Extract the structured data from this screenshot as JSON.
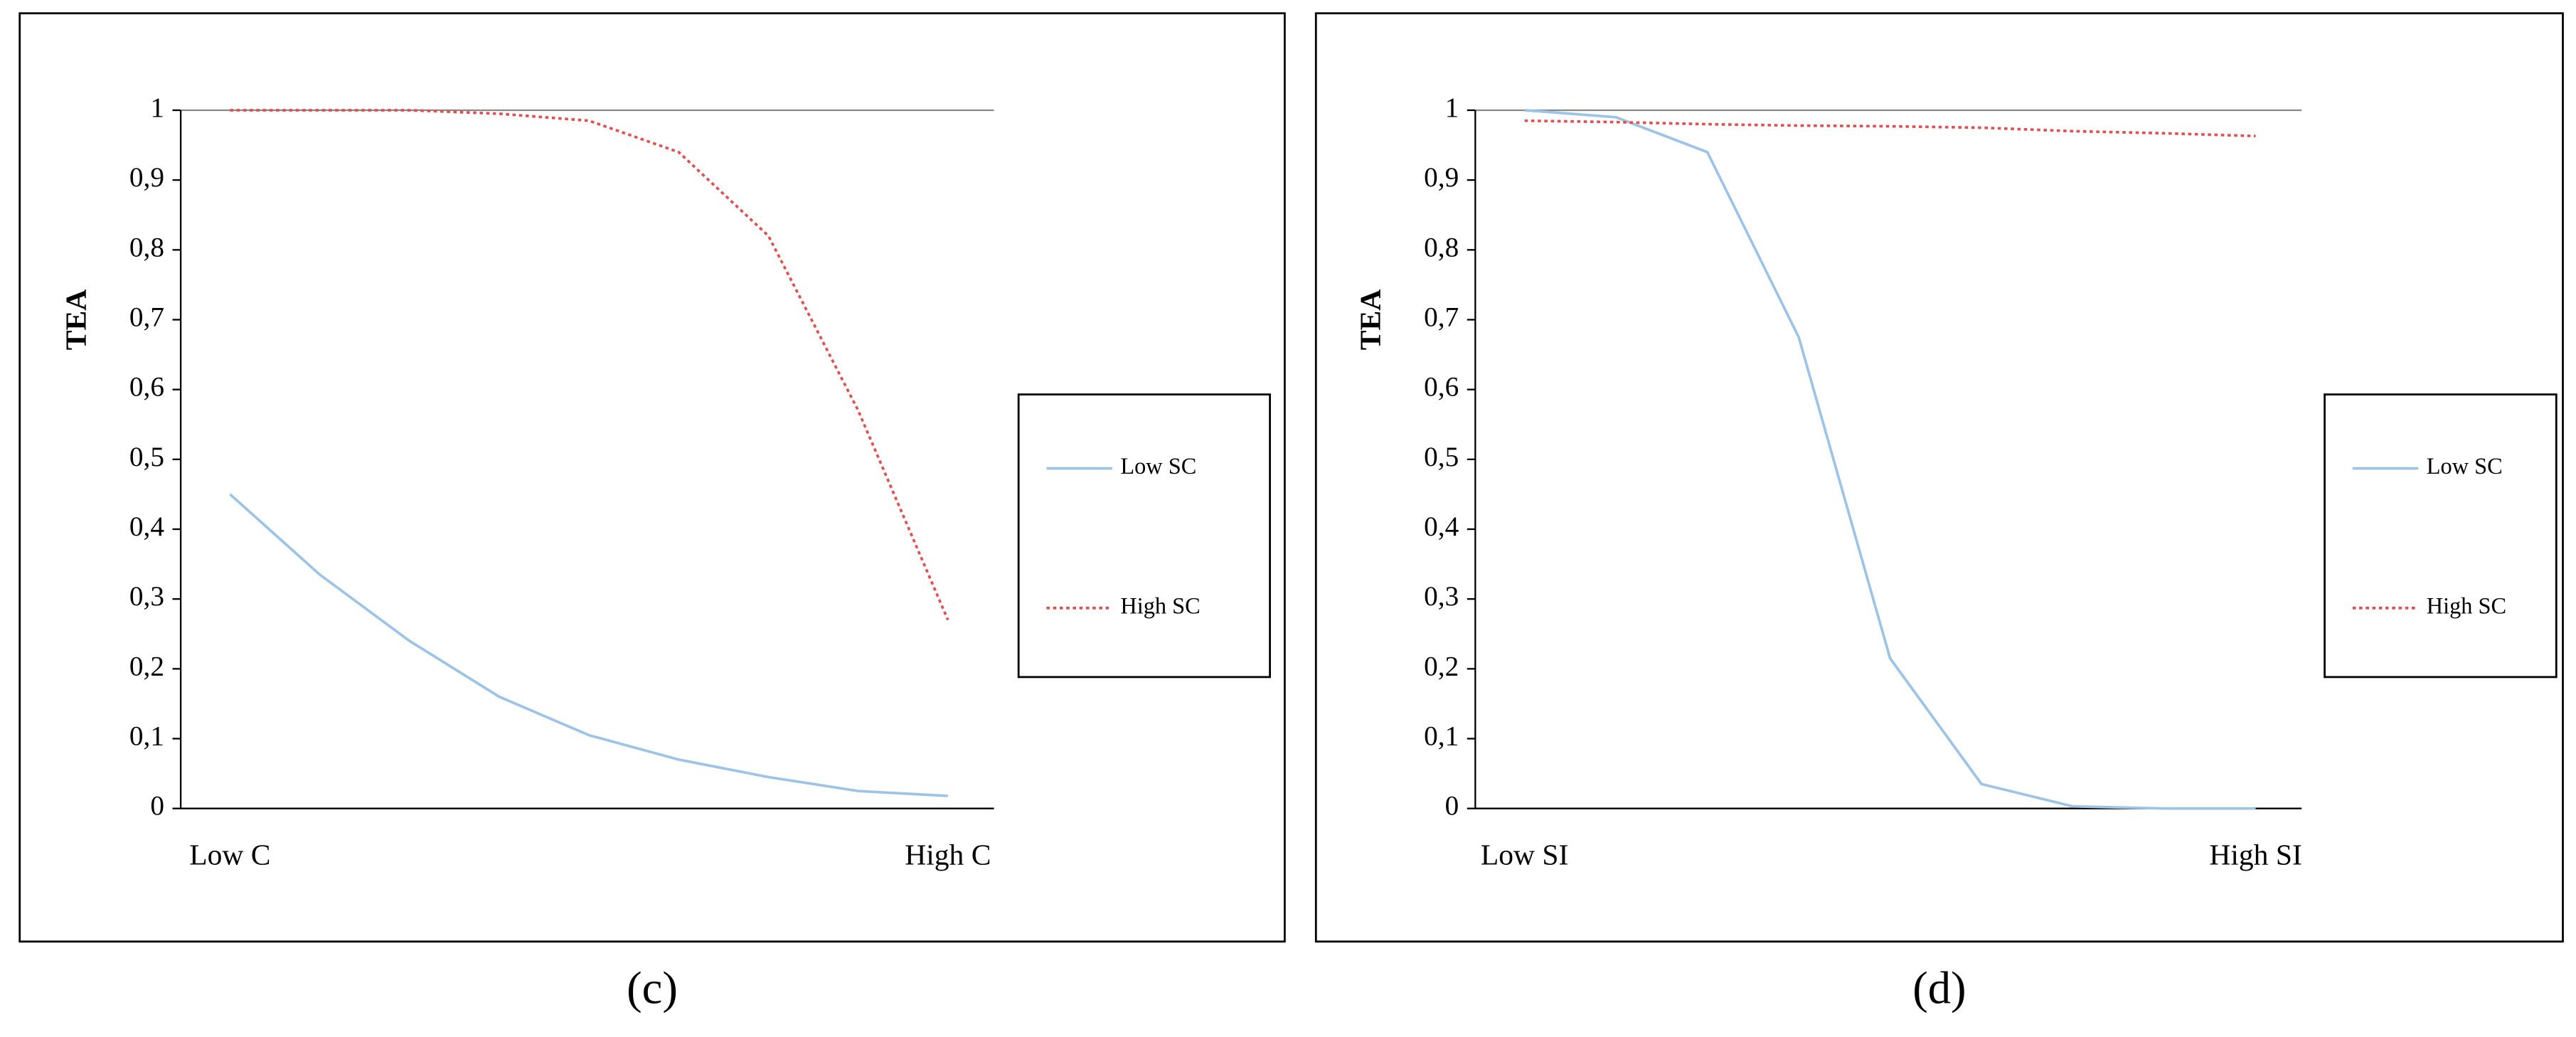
{
  "chart_data": [
    {
      "type": "line",
      "y_label": "TEA",
      "caption": "(c)",
      "categories": [
        "Low C",
        null,
        null,
        null,
        null,
        null,
        null,
        null,
        "High C"
      ],
      "series": [
        {
          "name": "Low SC",
          "color": "#9dc3e6",
          "line_style": "solid",
          "values": [
            0.45,
            0.335,
            0.24,
            0.16,
            0.105,
            0.07,
            0.045,
            0.025,
            0.018
          ]
        },
        {
          "name": "High SC",
          "color": "#e05050",
          "line_style": "dotted",
          "values": [
            1,
            1,
            1,
            0.995,
            0.985,
            0.94,
            0.82,
            0.57,
            0.27
          ]
        }
      ],
      "ylim": [
        0,
        1
      ],
      "yticks": [
        0,
        {
          "value": 0.1,
          "label": "0,1"
        },
        {
          "value": 0.2,
          "label": "0,2"
        },
        {
          "value": 0.3,
          "label": "0,3"
        },
        {
          "value": 0.4,
          "label": "0,4"
        },
        {
          "value": 0.5,
          "label": "0,5"
        },
        {
          "value": 0.6,
          "label": "0,6"
        },
        {
          "value": 0.7,
          "label": "0,7"
        },
        {
          "value": 0.8,
          "label": "0,8"
        },
        {
          "value": 0.9,
          "label": "0,9"
        },
        1
      ],
      "legend": "right"
    },
    {
      "type": "line",
      "y_label": "TEA",
      "caption": "(d)",
      "categories": [
        "Low SI",
        null,
        null,
        null,
        null,
        null,
        null,
        null,
        "High SI"
      ],
      "series": [
        {
          "name": "Low SC",
          "color": "#9dc3e6",
          "line_style": "solid",
          "values": [
            1,
            0.99,
            0.94,
            0.675,
            0.215,
            0.035,
            0.003,
            0,
            0
          ]
        },
        {
          "name": "High SC",
          "color": "#e05050",
          "line_style": "dotted",
          "values": [
            0.985,
            0.983,
            0.98,
            0.978,
            0.977,
            0.975,
            0.97,
            0.967,
            0.963
          ]
        }
      ],
      "ylim": [
        0,
        1
      ],
      "yticks": [
        0,
        {
          "value": 0.1,
          "label": "0,1"
        },
        {
          "value": 0.2,
          "label": "0,2"
        },
        {
          "value": 0.3,
          "label": "0,3"
        },
        {
          "value": 0.4,
          "label": "0,4"
        },
        {
          "value": 0.5,
          "label": "0,5"
        },
        {
          "value": 0.6,
          "label": "0,6"
        },
        {
          "value": 0.7,
          "label": "0,7"
        },
        {
          "value": 0.8,
          "label": "0,8"
        },
        {
          "value": 0.9,
          "label": "0,9"
        },
        1
      ],
      "legend": "right"
    }
  ]
}
